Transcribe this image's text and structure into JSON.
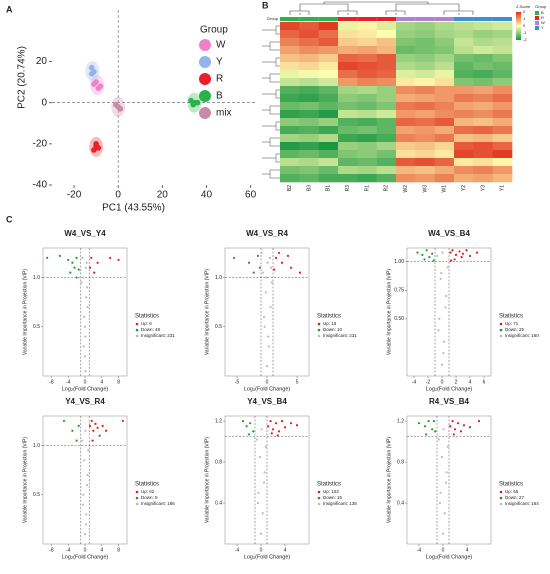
{
  "panels": [
    "A",
    "B",
    "C"
  ],
  "chart_data": [
    {
      "type": "scatter",
      "xlabel": "PC1 (43.55%)",
      "ylabel": "PC2 (20.74%)",
      "xlim": [
        -30,
        62
      ],
      "xticks": [
        -20,
        0,
        20,
        40,
        60
      ],
      "ylim": [
        -40,
        45
      ],
      "yticks": [
        -40,
        -20,
        0,
        20
      ],
      "legend_title": "Group",
      "series": [
        {
          "name": "W",
          "color": "#ee82c8",
          "x": [
            -11,
            -9,
            -10,
            -8
          ],
          "values": [
            9,
            7,
            10,
            8
          ]
        },
        {
          "name": "Y",
          "color": "#92b4ea",
          "x": [
            -12,
            -11,
            -12
          ],
          "values": [
            17,
            15,
            14
          ]
        },
        {
          "name": "R",
          "color": "#e8202a",
          "x": [
            -10,
            -9,
            -11,
            -10
          ],
          "values": [
            -21,
            -22,
            -23,
            -20
          ]
        },
        {
          "name": "B",
          "color": "#2ab34b",
          "x": [
            33,
            35,
            34,
            36
          ],
          "values": [
            1,
            0,
            -1,
            0
          ]
        },
        {
          "name": "mix",
          "color": "#c98aa8",
          "x": [
            -1,
            0,
            1
          ],
          "values": [
            -1,
            -2,
            -3
          ]
        }
      ]
    },
    {
      "type": "heatmap",
      "group_title": "Group",
      "legend_title": "Z-Score",
      "group_legend_title": "Group",
      "columns": [
        "B2",
        "B3",
        "B1",
        "R3",
        "R1",
        "R2",
        "W2",
        "W3",
        "W1",
        "Y2",
        "Y3",
        "Y1"
      ],
      "zlim": [
        -2,
        2
      ],
      "zticks": [
        2,
        1,
        0,
        -1,
        -2
      ],
      "colors": [
        "#1a9641",
        "#ffffb0",
        "#e0301e"
      ],
      "groups": [
        {
          "name": "B",
          "color": "#2ab34b"
        },
        {
          "name": "R",
          "color": "#e8202a"
        },
        {
          "name": "W",
          "color": "#b57ed6"
        },
        {
          "name": "Y",
          "color": "#3c8fd0"
        }
      ],
      "values": [
        [
          1.8,
          1.6,
          1.9,
          -0.2,
          0.1,
          -0.3,
          -0.8,
          -0.9,
          -0.7,
          -0.6,
          -0.5,
          -0.4
        ],
        [
          1.5,
          1.7,
          1.4,
          0.3,
          0.2,
          0.0,
          -0.9,
          -1.0,
          -0.8,
          -0.7,
          -0.9,
          -0.8
        ],
        [
          1.2,
          1.4,
          1.6,
          0.5,
          0.4,
          0.6,
          -1.1,
          -1.2,
          -1.0,
          -0.5,
          -0.7,
          -0.6
        ],
        [
          0.9,
          1.1,
          1.0,
          0.8,
          0.9,
          0.7,
          -1.3,
          -1.2,
          -1.1,
          -0.6,
          -0.4,
          -0.5
        ],
        [
          0.6,
          0.7,
          0.5,
          1.5,
          1.4,
          1.6,
          -0.9,
          -1.0,
          -0.8,
          -1.2,
          -1.3,
          -1.1
        ],
        [
          0.3,
          0.4,
          0.2,
          1.8,
          1.7,
          1.6,
          -0.7,
          -0.8,
          -0.6,
          -1.4,
          -1.2,
          -1.3
        ],
        [
          -0.2,
          -0.1,
          0.0,
          1.4,
          1.6,
          1.5,
          -0.3,
          -0.4,
          -0.2,
          -1.5,
          -1.6,
          -1.4
        ],
        [
          -0.5,
          -0.6,
          -0.4,
          1.0,
          1.2,
          1.1,
          0.2,
          0.1,
          0.3,
          -1.1,
          -1.2,
          -1.0
        ],
        [
          -1.5,
          -1.6,
          -1.4,
          -0.8,
          -0.7,
          -0.9,
          1.1,
          1.2,
          1.0,
          1.0,
          0.9,
          1.1
        ],
        [
          -1.7,
          -1.8,
          -1.6,
          -1.0,
          -1.1,
          -0.9,
          0.8,
          0.9,
          1.0,
          1.3,
          1.2,
          1.4
        ],
        [
          -1.3,
          -1.2,
          -1.4,
          -1.2,
          -1.3,
          -1.1,
          1.3,
          1.4,
          1.2,
          0.9,
          0.8,
          1.0
        ],
        [
          -1.8,
          -1.7,
          -1.9,
          -0.5,
          -0.6,
          -0.4,
          1.0,
          0.9,
          1.1,
          1.2,
          1.1,
          1.3
        ],
        [
          -1.0,
          -1.1,
          -0.9,
          -1.5,
          -1.6,
          -1.4,
          1.5,
          1.4,
          1.6,
          0.7,
          0.6,
          0.8
        ],
        [
          -1.6,
          -1.5,
          -1.7,
          -1.3,
          -1.2,
          -1.4,
          0.9,
          1.0,
          0.8,
          1.4,
          1.5,
          1.3
        ],
        [
          -0.8,
          -0.9,
          -0.7,
          -1.7,
          -1.8,
          -1.6,
          1.2,
          1.1,
          1.3,
          0.6,
          0.7,
          0.5
        ],
        [
          -1.9,
          -1.8,
          -2.0,
          -0.9,
          -1.0,
          -0.8,
          0.5,
          0.6,
          0.4,
          1.6,
          1.7,
          1.5
        ],
        [
          -1.4,
          -1.3,
          -1.5,
          -1.1,
          -1.0,
          -1.2,
          0.3,
          0.4,
          0.2,
          1.8,
          1.7,
          1.9
        ],
        [
          -0.6,
          -0.7,
          -0.5,
          -1.4,
          -1.3,
          -1.5,
          1.6,
          1.7,
          1.5,
          0.2,
          0.3,
          0.1
        ],
        [
          -1.2,
          -1.1,
          -1.3,
          -0.7,
          -0.8,
          -0.6,
          0.7,
          0.6,
          0.8,
          1.1,
          1.2,
          1.0
        ],
        [
          -1.5,
          -1.4,
          -1.6,
          -1.6,
          -1.7,
          -1.5,
          1.1,
          1.0,
          1.2,
          0.8,
          0.9,
          0.7
        ]
      ]
    },
    {
      "type": "volcano",
      "title": "W4_VS_Y4",
      "xlabel": "Log₂(Fold Change)",
      "ylabel": "Variable Importance in Projection (VIP)",
      "xlim": [
        -10,
        10
      ],
      "xticks": [
        -8,
        -4,
        0,
        4,
        8
      ],
      "ylim": [
        0,
        1.3
      ],
      "yticks": [
        {
          "value": 0.5,
          "label": "0.5"
        },
        {
          "value": 1,
          "label": "1.0"
        }
      ],
      "thresholds": {
        "x": [
          -1,
          1
        ],
        "y": 1
      },
      "legend_title": "Statistics",
      "series": [
        {
          "name": "Up: 6",
          "color": "#e31a1c",
          "x": [
            1.5,
            3,
            6,
            8,
            2.2,
            1.2
          ],
          "values": [
            1.2,
            1.15,
            1.2,
            1.18,
            1.05,
            1.1
          ]
        },
        {
          "name": "Down: 48",
          "color": "#1a9e2b",
          "x": [
            -9,
            -6,
            -4,
            -3,
            -2.5,
            -2,
            -1.5,
            -3.5,
            -2
          ],
          "values": [
            1.2,
            1.22,
            1.18,
            1.15,
            1.1,
            1.2,
            1.08,
            1.05,
            1.0
          ]
        },
        {
          "name": "Insignificant: 231",
          "color": "#bbbbbb",
          "x": [
            0,
            0.1,
            -0.2,
            0.3,
            0.5,
            -0.5,
            0.2,
            -0.8,
            0.6,
            -0.3,
            0.1,
            0.4,
            -0.6,
            0
          ],
          "values": [
            0.2,
            0.4,
            0.6,
            0.8,
            0.9,
            1.0,
            1.1,
            0.95,
            0.7,
            0.3,
            0.05,
            1.15,
            1.2,
            0.5
          ]
        }
      ]
    },
    {
      "type": "volcano",
      "title": "W4_VS_R4",
      "xlabel": "Log₂(Fold Change)",
      "ylabel": "Variable Importance in Projection (VIP)",
      "xlim": [
        -7,
        7
      ],
      "xticks": [
        -5,
        0,
        5
      ],
      "ylim": [
        0,
        1.3
      ],
      "yticks": [
        {
          "value": 0.5,
          "label": "0.5"
        },
        {
          "value": 1,
          "label": "1.0"
        }
      ],
      "thresholds": {
        "x": [
          -1,
          1
        ],
        "y": 1
      },
      "legend_title": "Statistics",
      "series": [
        {
          "name": "Up: 15",
          "color": "#e31a1c",
          "x": [
            1.5,
            2.5,
            3.5,
            4,
            5.5,
            2,
            1.2
          ],
          "values": [
            1.2,
            1.15,
            1.22,
            1.1,
            1.05,
            1.25,
            1.08
          ]
        },
        {
          "name": "Down: 10",
          "color": "#1a9e2b",
          "x": [
            -5.5,
            -3,
            -2.2,
            -1.5,
            -1.2
          ],
          "values": [
            1.2,
            1.15,
            1.05,
            1.22,
            1.1
          ]
        },
        {
          "name": "Insignificant: 231",
          "color": "#bbbbbb",
          "x": [
            0,
            0.3,
            -0.4,
            0.6,
            -0.2,
            0.8,
            -0.7,
            0.1,
            0.5,
            -0.5,
            0.2,
            -0.1,
            0.7,
            -0.9
          ],
          "values": [
            0.1,
            0.3,
            0.5,
            0.7,
            0.85,
            0.95,
            1.05,
            1.15,
            1.2,
            0.6,
            0.4,
            1.0,
            1.1,
            1.25
          ]
        }
      ]
    },
    {
      "type": "volcano",
      "title": "W4_VS_B4",
      "xlabel": "Log₂(Fold Change)",
      "ylabel": "Variable Importance in Projection (VIP)",
      "xlim": [
        -5,
        7
      ],
      "xticks": [
        -4,
        -2,
        0,
        2,
        4,
        6
      ],
      "ylim": [
        0,
        1.12
      ],
      "yticks": [
        {
          "value": 0.5,
          "label": "0.50"
        },
        {
          "value": 0.75,
          "label": "0.75"
        },
        {
          "value": 1,
          "label": "1.00"
        }
      ],
      "thresholds": {
        "x": [
          -1,
          1
        ],
        "y": 1
      },
      "legend_title": "Statistics",
      "series": [
        {
          "name": "Up: 71",
          "color": "#e31a1c",
          "x": [
            1.2,
            1.5,
            2,
            2.5,
            3,
            3.5,
            4,
            1.8,
            2.8,
            1.3,
            5
          ],
          "values": [
            1.08,
            1.1,
            1.06,
            1.09,
            1.07,
            1.1,
            1.05,
            1.02,
            1.04,
            1.01,
            1.08
          ]
        },
        {
          "name": "Down: 25",
          "color": "#1a9e2b",
          "x": [
            -3.5,
            -2.8,
            -2.2,
            -1.8,
            -1.4,
            -2.5,
            -1.2
          ],
          "values": [
            1.08,
            1.06,
            1.1,
            1.04,
            1.07,
            1.02,
            1.01
          ]
        },
        {
          "name": "Insignificant: 160",
          "color": "#bbbbbb",
          "x": [
            0,
            0.3,
            -0.4,
            0.6,
            -0.2,
            0.8,
            -0.7,
            0.1,
            0.5,
            -0.5,
            0.2,
            -0.1
          ],
          "values": [
            0.1,
            0.3,
            0.5,
            0.7,
            0.85,
            0.95,
            1.05,
            1.08,
            0.6,
            0.4,
            0.2,
            0.9
          ]
        }
      ]
    },
    {
      "type": "volcano",
      "title": "Y4_VS_R4",
      "xlabel": "Log₂(Fold Change)",
      "ylabel": "Variable Importance in Projection (VIP)",
      "xlim": [
        -10,
        10
      ],
      "xticks": [
        -8,
        -4,
        0,
        4,
        8
      ],
      "ylim": [
        0,
        1.3
      ],
      "yticks": [
        {
          "value": 0.5,
          "label": "0.5"
        },
        {
          "value": 1,
          "label": "1.0"
        }
      ],
      "thresholds": {
        "x": [
          -1,
          1
        ],
        "y": 1
      },
      "legend_title": "Statistics",
      "series": [
        {
          "name": "Up: 62",
          "color": "#e31a1c",
          "x": [
            1.2,
            1.6,
            2,
            2.5,
            3,
            3.5,
            4.2,
            5,
            9,
            1.8
          ],
          "values": [
            1.2,
            1.25,
            1.15,
            1.22,
            1.18,
            1.1,
            1.2,
            1.15,
            1.25,
            1.05
          ]
        },
        {
          "name": "Down: 8",
          "color": "#1a9e2b",
          "x": [
            -5,
            -3,
            -1.5,
            -2
          ],
          "values": [
            1.25,
            1.15,
            1.2,
            1.05
          ]
        },
        {
          "name": "Insignificant: 186",
          "color": "#bbbbbb",
          "x": [
            0,
            0.3,
            -0.4,
            0.6,
            -0.2,
            0.8,
            -0.7,
            0.1,
            0.5,
            -0.5,
            0.2
          ],
          "values": [
            0.1,
            0.3,
            0.5,
            0.7,
            0.85,
            0.95,
            1.05,
            1.15,
            0.6,
            0.4,
            0.2
          ]
        }
      ]
    },
    {
      "type": "volcano",
      "title": "Y4_VS_B4",
      "xlabel": "Log₂(Fold Change)",
      "ylabel": "Variable Importance in Projection (VIP)",
      "xlim": [
        -6,
        8
      ],
      "xticks": [
        -4,
        0,
        4
      ],
      "ylim": [
        0,
        1.25
      ],
      "yticks": [
        {
          "value": 0.4,
          "label": "0.4"
        },
        {
          "value": 0.8,
          "label": "0.8"
        },
        {
          "value": 1.2,
          "label": "1.2"
        }
      ],
      "thresholds": {
        "x": [
          -1,
          1
        ],
        "y": 1.05
      },
      "legend_title": "Statistics",
      "series": [
        {
          "name": "Up: 103",
          "color": "#e31a1c",
          "x": [
            1.2,
            1.6,
            2,
            2.5,
            3,
            3.5,
            4,
            5,
            6,
            1.8,
            2.8
          ],
          "values": [
            1.15,
            1.2,
            1.12,
            1.18,
            1.1,
            1.2,
            1.14,
            1.18,
            1.16,
            1.08,
            1.06
          ]
        },
        {
          "name": "Down: 15",
          "color": "#1a9e2b",
          "x": [
            -3,
            -2.4,
            -1.8,
            -1.3,
            -2
          ],
          "values": [
            1.2,
            1.15,
            1.18,
            1.1,
            1.07
          ]
        },
        {
          "name": "Insignificant: 138",
          "color": "#bbbbbb",
          "x": [
            0,
            0.3,
            -0.4,
            0.6,
            -0.2,
            0.8,
            -0.7,
            0.1,
            0.5,
            -0.5
          ],
          "values": [
            0.1,
            0.3,
            0.5,
            0.7,
            0.85,
            0.95,
            1.02,
            1.12,
            0.6,
            0.4
          ]
        }
      ]
    },
    {
      "type": "volcano",
      "title": "R4_VS_B4",
      "xlabel": "Log₂(Fold Change)",
      "ylabel": "Variable Importance in Projection (VIP)",
      "xlim": [
        -6,
        8
      ],
      "xticks": [
        -4,
        0,
        4
      ],
      "ylim": [
        0,
        1.25
      ],
      "yticks": [
        {
          "value": 0.4,
          "label": "0.4"
        },
        {
          "value": 0.8,
          "label": "0.8"
        },
        {
          "value": 1.2,
          "label": "1.2"
        }
      ],
      "thresholds": {
        "x": [
          -1,
          1
        ],
        "y": 1.05
      },
      "legend_title": "Statistics",
      "series": [
        {
          "name": "Up: 65",
          "color": "#e31a1c",
          "x": [
            1.2,
            1.6,
            2,
            2.5,
            3,
            3.5,
            4.5,
            6,
            1.8
          ],
          "values": [
            1.15,
            1.2,
            1.12,
            1.18,
            1.1,
            1.16,
            1.14,
            1.2,
            1.07
          ]
        },
        {
          "name": "Down: 27",
          "color": "#1a9e2b",
          "x": [
            -4,
            -3,
            -2.4,
            -1.8,
            -1.3,
            -2.8,
            -1.5
          ],
          "values": [
            1.18,
            1.15,
            1.2,
            1.12,
            1.1,
            1.07,
            1.2
          ]
        },
        {
          "name": "Insignificant: 164",
          "color": "#bbbbbb",
          "x": [
            0,
            0.3,
            -0.4,
            0.6,
            -0.2,
            0.8,
            -0.7,
            0.1,
            0.5,
            -0.5
          ],
          "values": [
            0.1,
            0.3,
            0.5,
            0.7,
            0.85,
            0.95,
            1.02,
            1.12,
            0.6,
            0.4
          ]
        }
      ]
    }
  ]
}
